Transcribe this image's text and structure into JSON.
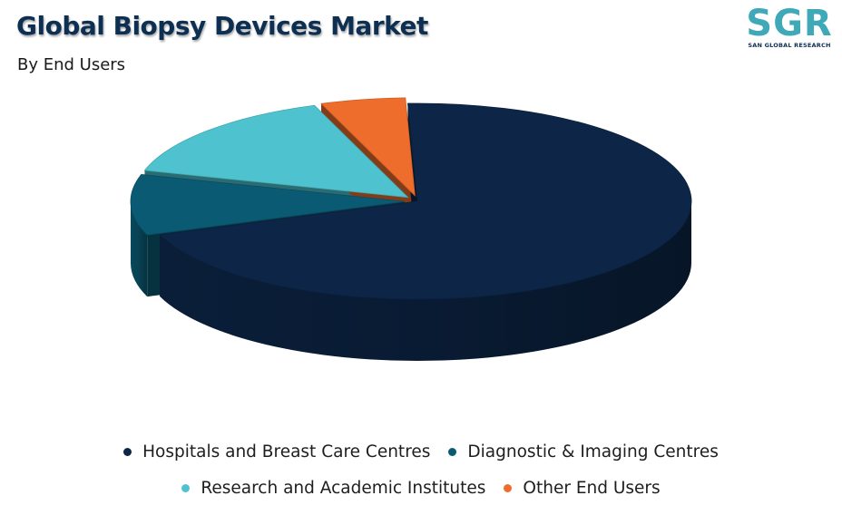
{
  "header": {
    "title": "Global Biopsy Devices Market",
    "subtitle": "By End Users"
  },
  "logo": {
    "mark": "SGR",
    "name": "SAN GLOBAL RESEARCH",
    "color": "#3fa9b8"
  },
  "chart_data": {
    "type": "pie",
    "style": "3d",
    "title": "Global Biopsy Devices Market",
    "subtitle": "By End Users",
    "legend_position": "bottom",
    "slices": [
      {
        "name": "Hospitals and Breast Care Centres",
        "value": 70,
        "color": "#0d2647"
      },
      {
        "name": "Diagnostic & Imaging Centres",
        "value": 10,
        "color": "#0b5a73"
      },
      {
        "name": "Research and Academic Institutes",
        "value": 15,
        "color": "#4ec3cf"
      },
      {
        "name": "Other End Users",
        "value": 5,
        "color": "#ee6d2c"
      }
    ]
  }
}
